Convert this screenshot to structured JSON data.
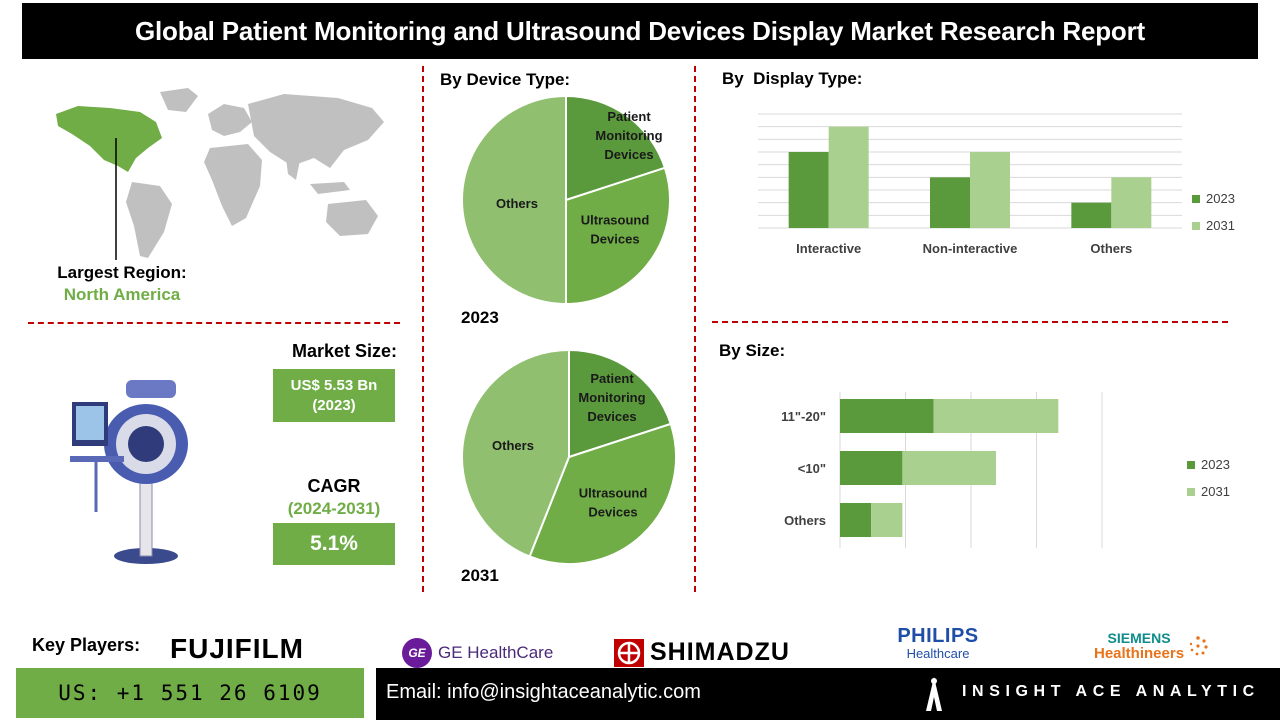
{
  "title": "Global Patient Monitoring and Ultrasound Devices Display Market Research Report",
  "region": {
    "label": "Largest Region:",
    "value": "North America"
  },
  "market_size": {
    "label": "Market Size:",
    "value": "US$ 5.53 Bn",
    "year": "(2023)"
  },
  "cagr": {
    "label": "CAGR",
    "period": "(2024-2031)",
    "value": "5.1%"
  },
  "device_type": {
    "title": "By Device Type:",
    "year_2023": "2023",
    "year_2031": "2031"
  },
  "display_type": {
    "title": "By  Display Type:"
  },
  "by_size": {
    "title": "By Size:"
  },
  "colors": {
    "dark_green": "#5a9a3c",
    "mid_green": "#70ad47",
    "light_green": "#a9d08e",
    "pie_light": "#8fbf6f",
    "accent_red": "#c00000"
  },
  "chart_data": [
    {
      "type": "pie",
      "year": "2023",
      "slices": [
        {
          "label": "Patient Monitoring Devices",
          "label_lines": [
            "Patient",
            "Monitoring",
            "Devices"
          ],
          "value": 20,
          "color": "#5a9a3c"
        },
        {
          "label": "Ultrasound Devices",
          "label_lines": [
            "Ultrasound",
            "Devices"
          ],
          "value": 30,
          "color": "#70ad47"
        },
        {
          "label": "Others",
          "label_lines": [
            "Others"
          ],
          "value": 50,
          "color": "#8fbf6f"
        }
      ]
    },
    {
      "type": "pie",
      "year": "2031",
      "slices": [
        {
          "label": "Patient Monitoring Devices",
          "label_lines": [
            "Patient",
            "Monitoring",
            "Devices"
          ],
          "value": 20,
          "color": "#5a9a3c"
        },
        {
          "label": "Ultrasound Devices",
          "label_lines": [
            "Ultrasound",
            "Devices"
          ],
          "value": 36,
          "color": "#70ad47"
        },
        {
          "label": "Others",
          "label_lines": [
            "Others"
          ],
          "value": 44,
          "color": "#8fbf6f"
        }
      ]
    },
    {
      "type": "bar",
      "orientation": "vertical",
      "categories": [
        "Interactive",
        "Non-interactive",
        "Others"
      ],
      "series": [
        {
          "name": "2023",
          "values": [
            3,
            2,
            1
          ],
          "color": "#5a9a3c"
        },
        {
          "name": "2031",
          "values": [
            4,
            3,
            2
          ],
          "color": "#a9d08e"
        }
      ],
      "ylim": [
        0,
        4.5
      ],
      "grid": true,
      "legend": "right"
    },
    {
      "type": "bar",
      "orientation": "horizontal-stacked",
      "categories": [
        "11\"-20\"",
        "<10\"",
        "Others"
      ],
      "series": [
        {
          "name": "2023",
          "values": [
            1.5,
            1.0,
            0.5
          ],
          "color": "#5a9a3c"
        },
        {
          "name": "2031",
          "values": [
            2.0,
            1.5,
            0.5
          ],
          "color": "#a9d08e"
        }
      ],
      "xlim": [
        0,
        4.2
      ],
      "grid": true,
      "legend": "right"
    }
  ],
  "key_players": {
    "label": "Key Players:",
    "companies": [
      {
        "name": "FUJIFILM"
      },
      {
        "name": "GE HealthCare",
        "badge": "GE"
      },
      {
        "name": "SHIMADZU"
      },
      {
        "name": "PHILIPS",
        "sub": "Healthcare"
      },
      {
        "name": "SIEMENS",
        "sub": "Healthineers"
      }
    ]
  },
  "footer": {
    "phone": "US: +1 551 26 6109",
    "email": "Email: info@insightaceanalytic.com",
    "brand": "INSIGHT ACE ANALYTIC"
  }
}
